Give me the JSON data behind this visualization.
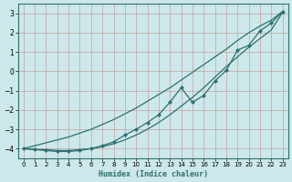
{
  "x": [
    0,
    1,
    2,
    3,
    4,
    5,
    6,
    7,
    8,
    9,
    10,
    11,
    12,
    13,
    14,
    15,
    16,
    17,
    18,
    19,
    20,
    21,
    22,
    23
  ],
  "line_upper": [
    -4.0,
    -3.85,
    -3.7,
    -3.55,
    -3.4,
    -3.2,
    -3.0,
    -2.75,
    -2.5,
    -2.2,
    -1.9,
    -1.55,
    -1.2,
    -0.85,
    -0.45,
    -0.05,
    0.35,
    0.75,
    1.15,
    1.6,
    2.0,
    2.35,
    2.65,
    3.1
  ],
  "line_lower": [
    -4.0,
    -4.05,
    -4.05,
    -4.1,
    -4.1,
    -4.05,
    -4.0,
    -3.9,
    -3.75,
    -3.55,
    -3.3,
    -3.0,
    -2.65,
    -2.25,
    -1.8,
    -1.35,
    -0.85,
    -0.3,
    0.25,
    0.75,
    1.25,
    1.7,
    2.15,
    3.05
  ],
  "line_markers": [
    -4.0,
    -4.05,
    -4.1,
    -4.15,
    -4.15,
    -4.1,
    -4.0,
    -3.85,
    -3.65,
    -3.3,
    -3.0,
    -2.65,
    -2.25,
    -1.6,
    -0.85,
    -1.6,
    -1.25,
    -0.5,
    0.05,
    1.1,
    1.35,
    2.1,
    2.5,
    3.1
  ],
  "line_color": "#2d7070",
  "bg_color": "#cce8ea",
  "grid_major_color": "#b8d4d6",
  "grid_minor_color": "#d8ecee",
  "xlabel": "Humidex (Indice chaleur)",
  "xlim": [
    -0.5,
    23.5
  ],
  "ylim": [
    -4.5,
    3.5
  ],
  "yticks": [
    -4,
    -3,
    -2,
    -1,
    0,
    1,
    2,
    3
  ],
  "xticks": [
    0,
    1,
    2,
    3,
    4,
    5,
    6,
    7,
    8,
    9,
    10,
    11,
    12,
    13,
    14,
    15,
    16,
    17,
    18,
    19,
    20,
    21,
    22,
    23
  ]
}
